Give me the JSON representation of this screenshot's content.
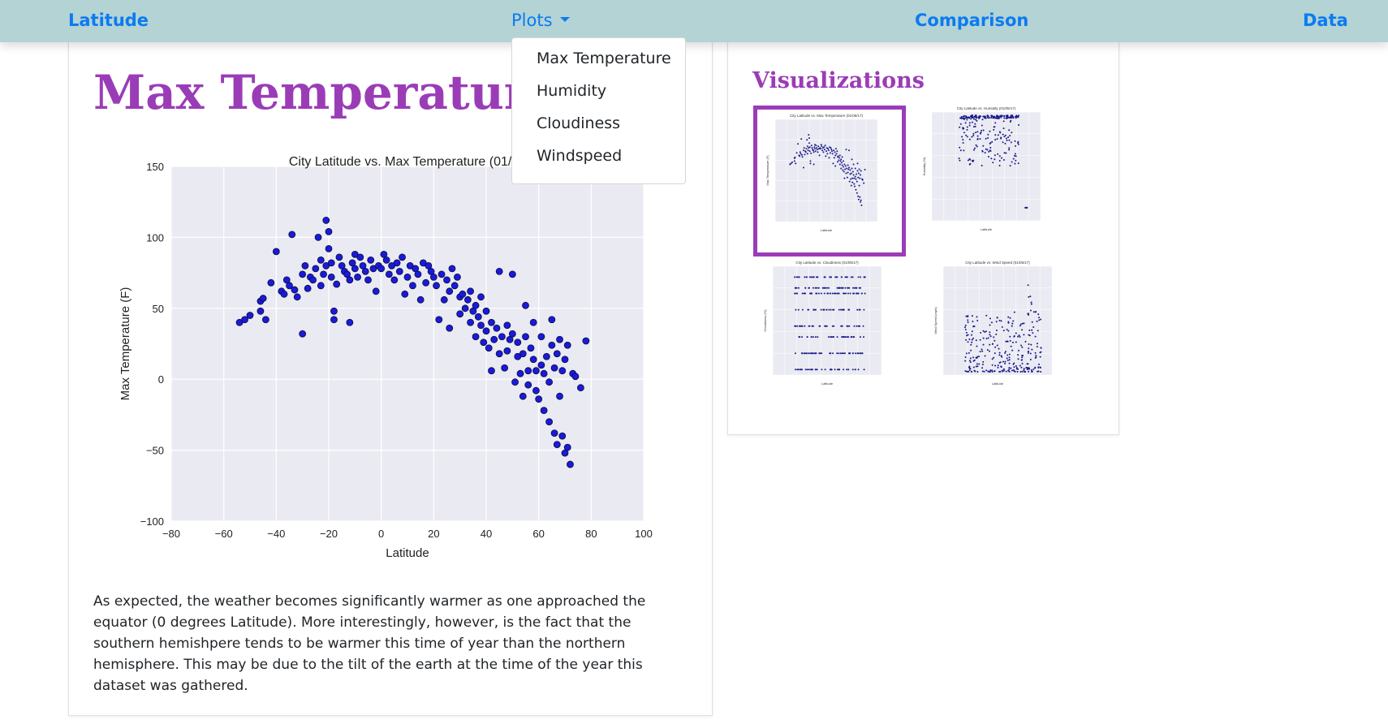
{
  "nav": {
    "brand": "Latitude",
    "plots": "Plots",
    "comparison": "Comparison",
    "data": "Data"
  },
  "dropdown": {
    "items": [
      "Max Temperature",
      "Humidity",
      "Cloudiness",
      "Windspeed"
    ]
  },
  "main": {
    "title": "Max Temperature",
    "description": "As expected, the weather becomes significantly warmer as one approached the equator (0 degrees Latitude). More interestingly, however, is the fact that the southern hemishpere tends to be warmer this time of year than the northern hemisphere. This may be due to the tilt of the earth at the time of the year this dataset was gathered."
  },
  "sidebar": {
    "title": "Visualizations",
    "thumbnails": [
      {
        "label": "City Latitude vs. Max Temperature (01/05/17)",
        "selected": true,
        "ylabel": "Max Temperature (F)"
      },
      {
        "label": "City Latitude vs. Humidity (01/05/17)",
        "selected": false,
        "ylabel": "Humidity (%)"
      },
      {
        "label": "City Latitude vs. Cloudiness (01/05/17)",
        "selected": false,
        "ylabel": "Cloudiness (%)"
      },
      {
        "label": "City Latitude vs. Wind Speed (01/05/17)",
        "selected": false,
        "ylabel": "Wind Speed (mph)"
      }
    ]
  },
  "colors": {
    "accent": "#9b3cb7",
    "link": "#0b7bf0",
    "navbar": "#b3d3d5",
    "plot_bg": "#eaeaf2",
    "marker": "#1a1adb"
  },
  "chart_data": {
    "type": "scatter",
    "title": "City Latitude vs. Max Temperature (01/05",
    "xlabel": "Latitude",
    "ylabel": "Max Temperature (F)",
    "xlim": [
      -80,
      100
    ],
    "ylim": [
      -100,
      150
    ],
    "xticks": [
      -80,
      -60,
      -40,
      -20,
      0,
      20,
      40,
      60,
      80,
      100
    ],
    "yticks": [
      -100,
      -50,
      0,
      50,
      100,
      150
    ],
    "grid": true,
    "points": [
      [
        -54,
        40
      ],
      [
        -52,
        42
      ],
      [
        -50,
        45
      ],
      [
        -46,
        55
      ],
      [
        -45,
        57
      ],
      [
        -46,
        48
      ],
      [
        -44,
        42
      ],
      [
        -42,
        68
      ],
      [
        -40,
        90
      ],
      [
        -38,
        62
      ],
      [
        -37,
        60
      ],
      [
        -36,
        70
      ],
      [
        -35,
        66
      ],
      [
        -34,
        102
      ],
      [
        -33,
        63
      ],
      [
        -32,
        58
      ],
      [
        -30,
        32
      ],
      [
        -30,
        74
      ],
      [
        -29,
        80
      ],
      [
        -28,
        64
      ],
      [
        -27,
        72
      ],
      [
        -26,
        70
      ],
      [
        -25,
        78
      ],
      [
        -24,
        100
      ],
      [
        -23,
        66
      ],
      [
        -23,
        84
      ],
      [
        -22,
        74
      ],
      [
        -21,
        112
      ],
      [
        -21,
        80
      ],
      [
        -20,
        104
      ],
      [
        -20,
        92
      ],
      [
        -19,
        72
      ],
      [
        -19,
        82
      ],
      [
        -18,
        48
      ],
      [
        -18,
        42
      ],
      [
        -17,
        67
      ],
      [
        -16,
        86
      ],
      [
        -15,
        80
      ],
      [
        -14,
        76
      ],
      [
        -13,
        74
      ],
      [
        -12,
        40
      ],
      [
        -12,
        70
      ],
      [
        -11,
        82
      ],
      [
        -10,
        88
      ],
      [
        -10,
        78
      ],
      [
        -9,
        72
      ],
      [
        -8,
        86
      ],
      [
        -7,
        80
      ],
      [
        -6,
        76
      ],
      [
        -5,
        70
      ],
      [
        -4,
        84
      ],
      [
        -3,
        78
      ],
      [
        -2,
        62
      ],
      [
        -1,
        80
      ],
      [
        0,
        78
      ],
      [
        1,
        88
      ],
      [
        2,
        84
      ],
      [
        3,
        74
      ],
      [
        4,
        80
      ],
      [
        5,
        70
      ],
      [
        6,
        82
      ],
      [
        7,
        76
      ],
      [
        8,
        86
      ],
      [
        9,
        60
      ],
      [
        10,
        72
      ],
      [
        11,
        80
      ],
      [
        12,
        66
      ],
      [
        13,
        78
      ],
      [
        14,
        74
      ],
      [
        15,
        56
      ],
      [
        16,
        82
      ],
      [
        17,
        68
      ],
      [
        18,
        80
      ],
      [
        19,
        76
      ],
      [
        20,
        72
      ],
      [
        21,
        66
      ],
      [
        22,
        42
      ],
      [
        23,
        74
      ],
      [
        24,
        56
      ],
      [
        25,
        70
      ],
      [
        26,
        36
      ],
      [
        26,
        62
      ],
      [
        27,
        78
      ],
      [
        28,
        66
      ],
      [
        29,
        72
      ],
      [
        30,
        58
      ],
      [
        30,
        46
      ],
      [
        31,
        60
      ],
      [
        32,
        50
      ],
      [
        33,
        56
      ],
      [
        34,
        40
      ],
      [
        34,
        62
      ],
      [
        35,
        48
      ],
      [
        36,
        30
      ],
      [
        36,
        52
      ],
      [
        37,
        44
      ],
      [
        38,
        38
      ],
      [
        38,
        58
      ],
      [
        39,
        26
      ],
      [
        40,
        34
      ],
      [
        40,
        48
      ],
      [
        41,
        22
      ],
      [
        42,
        40
      ],
      [
        42,
        6
      ],
      [
        43,
        28
      ],
      [
        44,
        36
      ],
      [
        45,
        18
      ],
      [
        45,
        76
      ],
      [
        46,
        30
      ],
      [
        47,
        8
      ],
      [
        48,
        20
      ],
      [
        48,
        38
      ],
      [
        49,
        28
      ],
      [
        50,
        32
      ],
      [
        50,
        74
      ],
      [
        51,
        -2
      ],
      [
        52,
        16
      ],
      [
        52,
        26
      ],
      [
        53,
        4
      ],
      [
        54,
        -12
      ],
      [
        54,
        18
      ],
      [
        55,
        30
      ],
      [
        55,
        52
      ],
      [
        56,
        6
      ],
      [
        56,
        -4
      ],
      [
        57,
        22
      ],
      [
        58,
        14
      ],
      [
        58,
        40
      ],
      [
        59,
        -8
      ],
      [
        59,
        6
      ],
      [
        60,
        -14
      ],
      [
        61,
        10
      ],
      [
        61,
        30
      ],
      [
        62,
        -22
      ],
      [
        62,
        4
      ],
      [
        63,
        16
      ],
      [
        64,
        -30
      ],
      [
        64,
        -2
      ],
      [
        65,
        24
      ],
      [
        65,
        42
      ],
      [
        66,
        -38
      ],
      [
        66,
        8
      ],
      [
        67,
        -46
      ],
      [
        67,
        18
      ],
      [
        68,
        -12
      ],
      [
        68,
        28
      ],
      [
        69,
        -40
      ],
      [
        69,
        6
      ],
      [
        70,
        -52
      ],
      [
        70,
        14
      ],
      [
        71,
        -48
      ],
      [
        71,
        24
      ],
      [
        72,
        -60
      ],
      [
        73,
        4
      ],
      [
        74,
        2
      ],
      [
        76,
        -6
      ],
      [
        78,
        27
      ]
    ]
  }
}
